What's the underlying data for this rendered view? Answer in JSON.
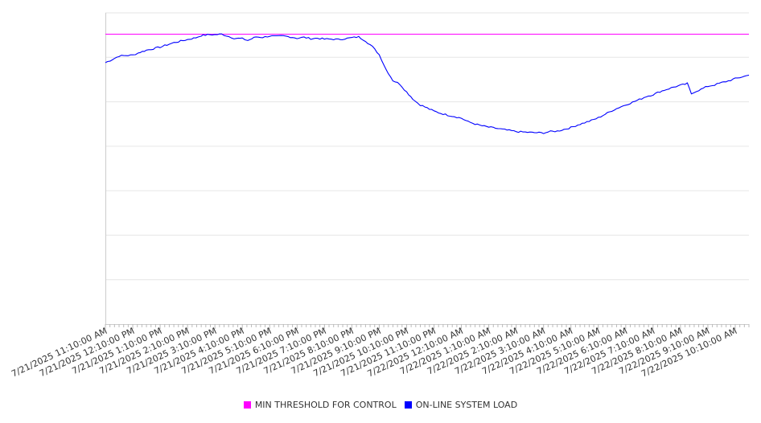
{
  "chart_data": {
    "type": "line",
    "title": "",
    "xlabel": "",
    "ylabel": "",
    "x_tick_labels": [
      "7/21/2025 11:10:00 AM",
      "7/21/2025 12:10:00 PM",
      "7/21/2025 1:10:00 PM",
      "7/21/2025 2:10:00 PM",
      "7/21/2025 3:10:00 PM",
      "7/21/2025 4:10:00 PM",
      "7/21/2025 5:10:00 PM",
      "7/21/2025 6:10:00 PM",
      "7/21/2025 7:10:00 PM",
      "7/21/2025 8:10:00 PM",
      "7/21/2025 9:10:00 PM",
      "7/21/2025 10:10:00 PM",
      "7/21/2025 11:10:00 PM",
      "7/22/2025 12:10:00 AM",
      "7/22/2025 1:10:00 AM",
      "7/22/2025 2:10:00 AM",
      "7/22/2025 3:10:00 AM",
      "7/22/2025 4:10:00 AM",
      "7/22/2025 5:10:00 AM",
      "7/22/2025 6:10:00 AM",
      "7/22/2025 7:10:00 AM",
      "7/22/2025 8:10:00 AM",
      "7/22/2025 9:10:00 AM",
      "7/22/2025 10:10:00 AM"
    ],
    "x_range_hours": [
      0,
      23.5
    ],
    "ylim": [
      0,
      7
    ],
    "y_gridlines": 7,
    "y_tick_labels_shown": false,
    "grid": true,
    "legend_position": "bottom-center",
    "series": [
      {
        "name": "MIN THRESHOLD FOR CONTROL",
        "color": "#ff00ff",
        "style": "constant",
        "values": [
          6.52,
          6.52
        ]
      },
      {
        "name": "ON-LINE SYSTEM LOAD",
        "color": "#0000ff",
        "style": "noisy-line",
        "x": [
          0,
          0.25,
          0.5,
          1.0,
          1.2,
          1.5,
          2.0,
          2.5,
          3.0,
          3.3,
          3.5,
          3.8,
          4.0,
          4.25,
          4.5,
          4.7,
          5.0,
          5.2,
          5.5,
          5.75,
          6.0,
          6.25,
          6.5,
          6.75,
          7.0,
          7.25,
          7.5,
          7.75,
          8.0,
          8.25,
          8.5,
          8.75,
          9.0,
          9.25,
          9.5,
          9.75,
          10.0,
          10.25,
          10.5,
          10.75,
          11.0,
          11.3,
          11.5,
          11.75,
          12.0,
          12.25,
          12.5,
          12.75,
          13.0,
          13.25,
          13.5,
          13.75,
          14.0,
          14.5,
          15.0,
          15.5,
          16.0,
          16.25,
          16.5,
          17.0,
          17.25,
          17.5,
          17.75,
          18.0,
          18.25,
          18.5,
          18.75,
          19.0,
          19.25,
          19.5,
          19.75,
          20.0,
          20.25,
          20.5,
          20.75,
          21.0,
          21.25,
          21.4,
          21.5,
          21.75,
          22.0,
          22.25,
          22.5,
          22.75,
          23.0,
          23.25,
          23.5
        ],
        "values": [
          5.88,
          5.95,
          6.03,
          6.05,
          6.1,
          6.16,
          6.23,
          6.33,
          6.4,
          6.44,
          6.49,
          6.51,
          6.51,
          6.52,
          6.47,
          6.43,
          6.42,
          6.38,
          6.46,
          6.45,
          6.48,
          6.47,
          6.48,
          6.46,
          6.43,
          6.45,
          6.42,
          6.43,
          6.41,
          6.41,
          6.4,
          6.42,
          6.44,
          6.46,
          6.37,
          6.24,
          6.06,
          5.73,
          5.48,
          5.4,
          5.22,
          5.02,
          4.93,
          4.86,
          4.79,
          4.74,
          4.7,
          4.67,
          4.63,
          4.55,
          4.5,
          4.46,
          4.43,
          4.38,
          4.33,
          4.31,
          4.3,
          4.33,
          4.34,
          4.42,
          4.48,
          4.53,
          4.58,
          4.64,
          4.72,
          4.8,
          4.87,
          4.93,
          4.99,
          5.05,
          5.12,
          5.16,
          5.23,
          5.28,
          5.33,
          5.37,
          5.41,
          5.18,
          5.22,
          5.28,
          5.35,
          5.38,
          5.43,
          5.47,
          5.52,
          5.56,
          5.6
        ]
      }
    ]
  }
}
